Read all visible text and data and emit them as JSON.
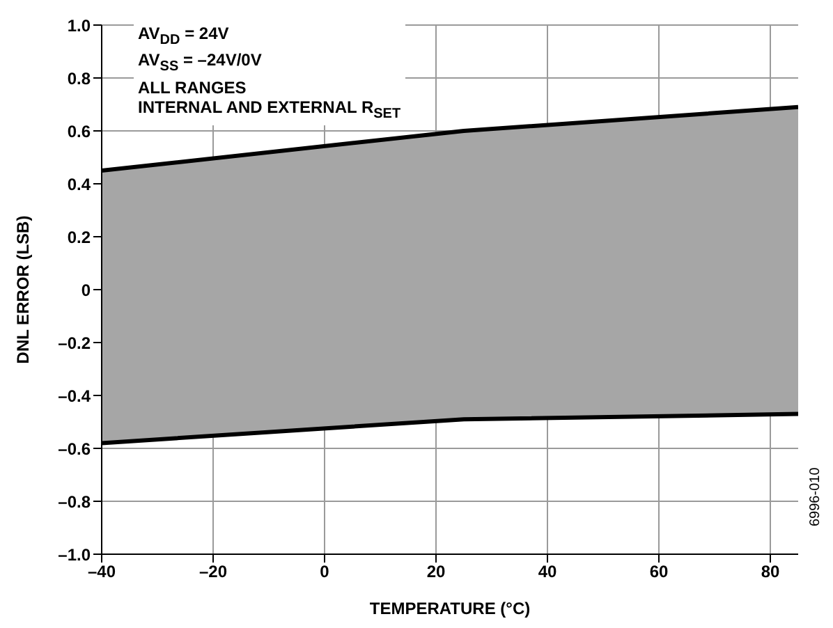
{
  "chart_data": {
    "type": "line",
    "xlabel": "TEMPERATURE (°C)",
    "ylabel": "DNL ERROR (LSB)",
    "x": [
      -40,
      25,
      85
    ],
    "series": [
      {
        "color": "#000000",
        "values": [
          0.45,
          0.6,
          0.69
        ],
        "lower": [
          -0.58,
          -0.49,
          -0.47
        ],
        "upper": [
          0.45,
          0.6,
          0.69
        ]
      },
      {
        "color": "#000000",
        "values": [
          -0.58,
          -0.49,
          -0.47
        ]
      }
    ],
    "xlim": [
      -40,
      85
    ],
    "xticks": [
      {
        "value": -40,
        "label": "–40"
      },
      {
        "value": -20,
        "label": "–20"
      },
      0,
      20,
      40,
      60,
      80
    ],
    "ylim": [
      -1,
      1
    ],
    "yticks": [
      {
        "value": -1,
        "label": "–1.0"
      },
      {
        "value": -0.8,
        "label": "–0.8"
      },
      {
        "value": -0.6,
        "label": "–0.6"
      },
      {
        "value": -0.4,
        "label": "–0.4"
      },
      {
        "value": -0.2,
        "label": "–0.2"
      },
      0,
      0.2,
      0.4,
      0.6,
      0.8,
      {
        "value": 1,
        "label": "1.0"
      }
    ],
    "grid": true,
    "marker": "none",
    "line_style": "solid",
    "annotations": [
      "AV$_{DD}$ = 24V",
      "AV$_{SS}$ = –24V/0V",
      "ALL RANGES",
      "INTERNAL AND EXTERNAL R$_{SET}$",
      "6996-010"
    ]
  }
}
